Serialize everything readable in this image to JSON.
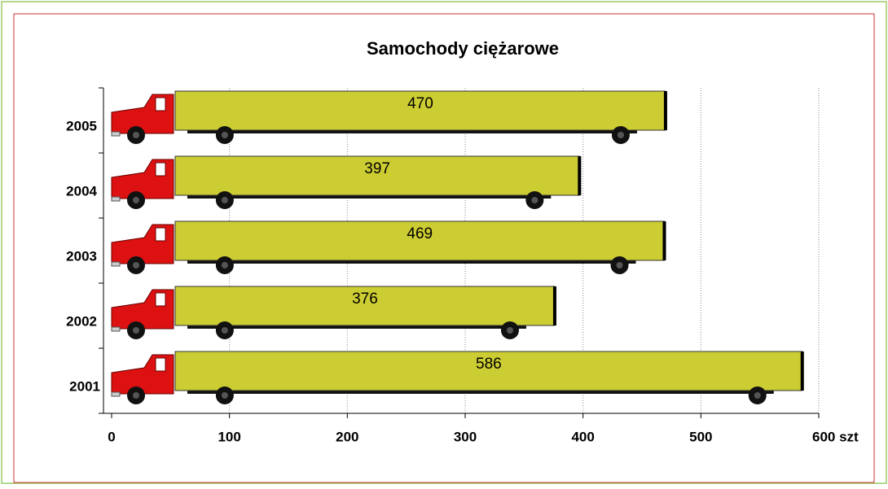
{
  "chart_data": {
    "type": "bar",
    "orientation": "horizontal",
    "title": "Samochody ciężarowe",
    "categories": [
      "2001",
      "2002",
      "2003",
      "2004",
      "2005"
    ],
    "values": [
      586,
      376,
      469,
      397,
      470
    ],
    "color": "#cccc33",
    "xlim": [
      0,
      600
    ],
    "xticks": [
      0,
      100,
      200,
      300,
      400,
      500,
      {
        "value": 600,
        "label": "600 szt"
      }
    ],
    "grid": true
  }
}
